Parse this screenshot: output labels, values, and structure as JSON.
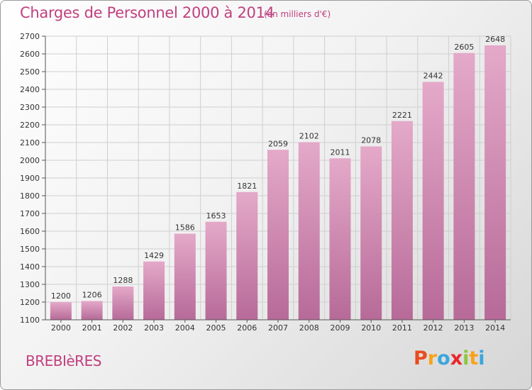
{
  "header": {
    "title": "Charges de Personnel 2000 à 2014",
    "subtitle": "(en milliers d'€)"
  },
  "footer": {
    "commune": "BREBIèRES",
    "logo_letters": [
      "P",
      "r",
      "o",
      "x",
      "i",
      "t",
      "i"
    ],
    "logo_colors": [
      "#e84c1e",
      "#f7a21b",
      "#3aa6dd",
      "#e8262d",
      "#8cc63f",
      "#f7a21b",
      "#3aa6dd"
    ]
  },
  "colors": {
    "bar_light": "#e4a9c9",
    "bar_dark": "#b76a98",
    "grid": "#cfcfcf",
    "title": "#c0407f"
  },
  "chart_data": {
    "type": "bar",
    "title": "Charges de Personnel 2000 à 2014",
    "subtitle": "(en milliers d'€)",
    "categories": [
      "2000",
      "2001",
      "2002",
      "2003",
      "2004",
      "2005",
      "2006",
      "2007",
      "2008",
      "2009",
      "2010",
      "2011",
      "2012",
      "2013",
      "2014"
    ],
    "values": [
      1200,
      1206,
      1288,
      1429,
      1586,
      1653,
      1821,
      2059,
      2102,
      2011,
      2078,
      2221,
      2442,
      2605,
      2648
    ],
    "ylim": [
      1100,
      2700
    ],
    "yticks": [
      1100,
      1200,
      1300,
      1400,
      1500,
      1600,
      1700,
      1800,
      1900,
      2000,
      2100,
      2200,
      2300,
      2400,
      2500,
      2600,
      2700
    ],
    "grid": true,
    "data_labels": true
  }
}
